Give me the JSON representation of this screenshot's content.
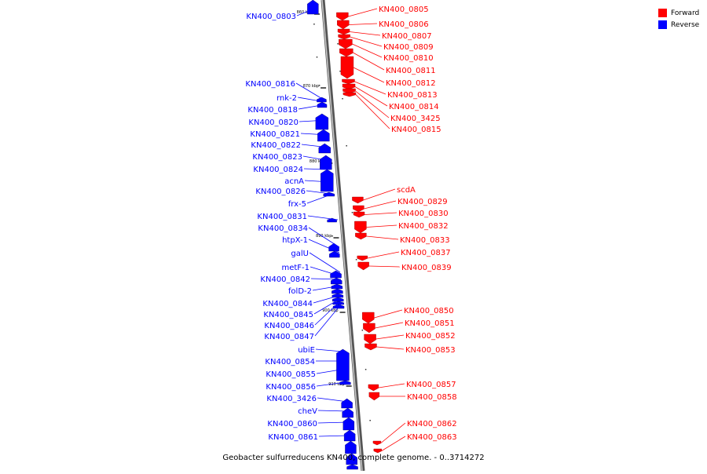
{
  "caption": "Geobacter sulfurreducens KN400, complete genome. - 0..3714272",
  "legend": [
    {
      "label": "Forward",
      "color": "#ff0000"
    },
    {
      "label": "Reverse",
      "color": "#0000ff"
    }
  ],
  "colors": {
    "forward": "#ff0000",
    "reverse": "#0000ff",
    "backbone": "#888888"
  },
  "ticks": [
    "860 kbp",
    "870 kbp",
    "880 kbp",
    "890 kbp",
    "900 kbp",
    "910 kbp"
  ],
  "forward_genes": [
    "KN400_0805",
    "KN400_0806",
    "KN400_0807",
    "KN400_0809",
    "KN400_0810",
    "KN400_0811",
    "KN400_0812",
    "KN400_0813",
    "KN400_0814",
    "KN400_3425",
    "KN400_0815",
    "scdA",
    "KN400_0829",
    "KN400_0830",
    "KN400_0832",
    "KN400_0833",
    "KN400_0837",
    "KN400_0839",
    "KN400_0850",
    "KN400_0851",
    "KN400_0852",
    "KN400_0853",
    "KN400_0857",
    "KN400_0858",
    "KN400_0862",
    "KN400_0863"
  ],
  "reverse_genes": [
    "KN400_0803",
    "KN400_0816",
    "rnk-2",
    "KN400_0818",
    "KN400_0820",
    "KN400_0821",
    "KN400_0822",
    "KN400_0823",
    "KN400_0824",
    "acnA",
    "KN400_0826",
    "frx-5",
    "KN400_0831",
    "KN400_0834",
    "htpX-1",
    "galU",
    "metF-1",
    "KN400_0842",
    "folD-2",
    "KN400_0844",
    "KN400_0845",
    "KN400_0846",
    "KN400_0847",
    "ubiE",
    "KN400_0854",
    "KN400_0855",
    "KN400_0856",
    "KN400_3426",
    "cheV",
    "KN400_0860",
    "KN400_0861"
  ]
}
